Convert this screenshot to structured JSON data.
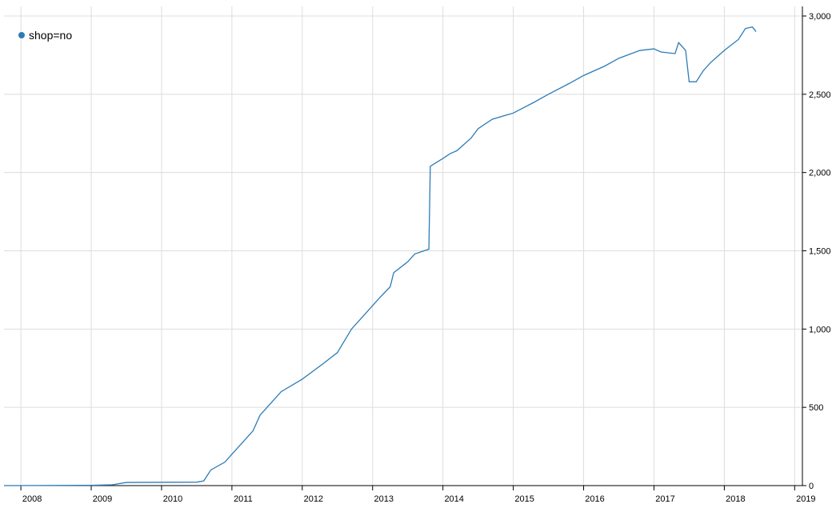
{
  "chart_data": {
    "type": "line",
    "series": [
      {
        "name": "shop=no",
        "color": "#2c7bb6",
        "x": [
          2007.76,
          2009.0,
          2009.3,
          2009.5,
          2010.5,
          2010.6,
          2010.7,
          2010.9,
          2011.0,
          2011.3,
          2011.4,
          2011.7,
          2012.0,
          2012.3,
          2012.5,
          2012.7,
          2012.9,
          2013.1,
          2013.25,
          2013.3,
          2013.5,
          2013.6,
          2013.8,
          2013.82,
          2014.0,
          2014.1,
          2014.2,
          2014.4,
          2014.5,
          2014.7,
          2015.0,
          2015.3,
          2015.5,
          2015.8,
          2016.0,
          2016.3,
          2016.5,
          2016.8,
          2017.0,
          2017.1,
          2017.3,
          2017.35,
          2017.45,
          2017.5,
          2017.6,
          2017.7,
          2017.8,
          2018.0,
          2018.2,
          2018.3,
          2018.4,
          2018.45
        ],
        "values": [
          0,
          2,
          5,
          20,
          22,
          30,
          100,
          150,
          200,
          350,
          450,
          600,
          680,
          780,
          850,
          1000,
          1100,
          1200,
          1270,
          1360,
          1430,
          1480,
          1510,
          2040,
          2090,
          2120,
          2140,
          2220,
          2280,
          2340,
          2380,
          2450,
          2500,
          2570,
          2620,
          2680,
          2730,
          2780,
          2790,
          2770,
          2760,
          2830,
          2780,
          2580,
          2580,
          2650,
          2700,
          2780,
          2850,
          2920,
          2930,
          2900
        ]
      }
    ],
    "xlim": [
      2007.76,
      2019.11
    ],
    "xticks": [
      2008,
      2009,
      2010,
      2011,
      2012,
      2013,
      2014,
      2015,
      2016,
      2017,
      2018,
      2019
    ],
    "ylim": [
      0,
      3000
    ],
    "yticks": [
      0,
      500,
      {
        "value": 1000,
        "label": "1,000"
      },
      {
        "value": 1500,
        "label": "1,500"
      },
      {
        "value": 2000,
        "label": "2,000"
      },
      {
        "value": 2500,
        "label": "2,500"
      },
      {
        "value": 3000,
        "label": "3,000"
      }
    ],
    "grid": true,
    "legend": "top-left"
  }
}
